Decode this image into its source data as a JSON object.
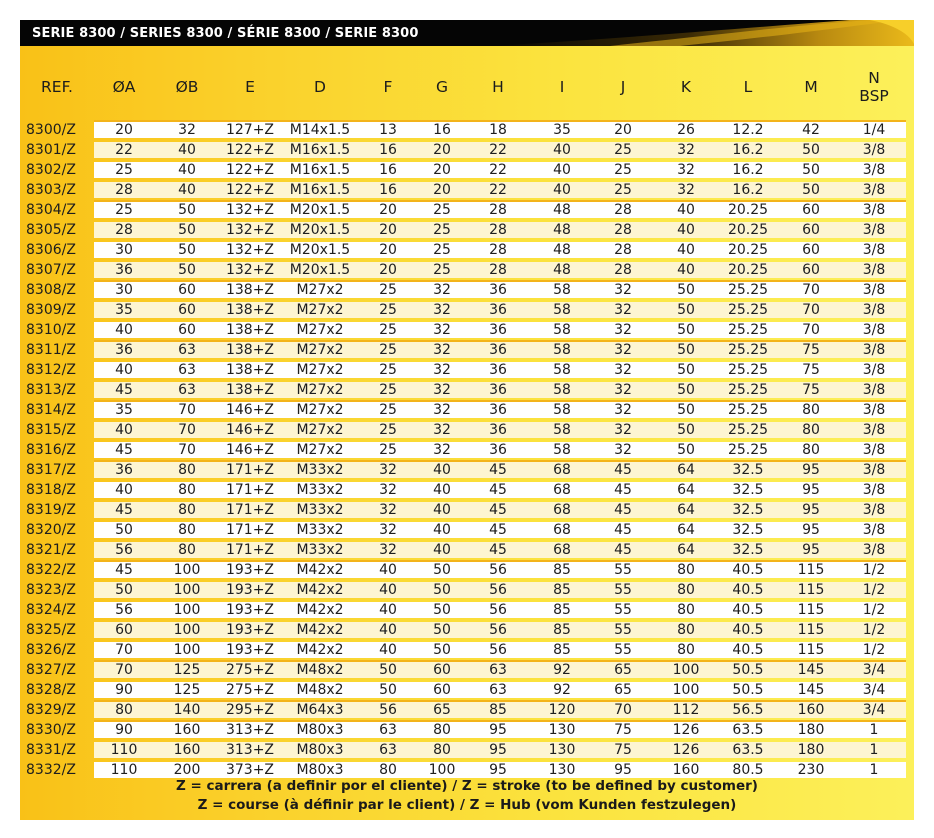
{
  "title": "SERIE 8300 / SERIES 8300 / SÉRIE 8300 / SERIE 8300",
  "colors": {
    "panel_yellow": "#fbd930",
    "banner_black": "#050505",
    "row_separator": "#f3b41a"
  },
  "table": {
    "headers": [
      "REF.",
      "ØA",
      "ØB",
      "E",
      "D",
      "F",
      "G",
      "H",
      "I",
      "J",
      "K",
      "L",
      "M",
      "N\nBSP"
    ],
    "rows": [
      [
        "8300/Z",
        "20",
        "32",
        "127+Z",
        "M14x1.5",
        "13",
        "16",
        "18",
        "35",
        "20",
        "26",
        "12.2",
        "42",
        "1/4"
      ],
      [
        "8301/Z",
        "22",
        "40",
        "122+Z",
        "M16x1.5",
        "16",
        "20",
        "22",
        "40",
        "25",
        "32",
        "16.2",
        "50",
        "3/8"
      ],
      [
        "8302/Z",
        "25",
        "40",
        "122+Z",
        "M16x1.5",
        "16",
        "20",
        "22",
        "40",
        "25",
        "32",
        "16.2",
        "50",
        "3/8"
      ],
      [
        "8303/Z",
        "28",
        "40",
        "122+Z",
        "M16x1.5",
        "16",
        "20",
        "22",
        "40",
        "25",
        "32",
        "16.2",
        "50",
        "3/8"
      ],
      [
        "8304/Z",
        "25",
        "50",
        "132+Z",
        "M20x1.5",
        "20",
        "25",
        "28",
        "48",
        "28",
        "40",
        "20.25",
        "60",
        "3/8"
      ],
      [
        "8305/Z",
        "28",
        "50",
        "132+Z",
        "M20x1.5",
        "20",
        "25",
        "28",
        "48",
        "28",
        "40",
        "20.25",
        "60",
        "3/8"
      ],
      [
        "8306/Z",
        "30",
        "50",
        "132+Z",
        "M20x1.5",
        "20",
        "25",
        "28",
        "48",
        "28",
        "40",
        "20.25",
        "60",
        "3/8"
      ],
      [
        "8307/Z",
        "36",
        "50",
        "132+Z",
        "M20x1.5",
        "20",
        "25",
        "28",
        "48",
        "28",
        "40",
        "20.25",
        "60",
        "3/8"
      ],
      [
        "8308/Z",
        "30",
        "60",
        "138+Z",
        "M27x2",
        "25",
        "32",
        "36",
        "58",
        "32",
        "50",
        "25.25",
        "70",
        "3/8"
      ],
      [
        "8309/Z",
        "35",
        "60",
        "138+Z",
        "M27x2",
        "25",
        "32",
        "36",
        "58",
        "32",
        "50",
        "25.25",
        "70",
        "3/8"
      ],
      [
        "8310/Z",
        "40",
        "60",
        "138+Z",
        "M27x2",
        "25",
        "32",
        "36",
        "58",
        "32",
        "50",
        "25.25",
        "70",
        "3/8"
      ],
      [
        "8311/Z",
        "36",
        "63",
        "138+Z",
        "M27x2",
        "25",
        "32",
        "36",
        "58",
        "32",
        "50",
        "25.25",
        "75",
        "3/8"
      ],
      [
        "8312/Z",
        "40",
        "63",
        "138+Z",
        "M27x2",
        "25",
        "32",
        "36",
        "58",
        "32",
        "50",
        "25.25",
        "75",
        "3/8"
      ],
      [
        "8313/Z",
        "45",
        "63",
        "138+Z",
        "M27x2",
        "25",
        "32",
        "36",
        "58",
        "32",
        "50",
        "25.25",
        "75",
        "3/8"
      ],
      [
        "8314/Z",
        "35",
        "70",
        "146+Z",
        "M27x2",
        "25",
        "32",
        "36",
        "58",
        "32",
        "50",
        "25.25",
        "80",
        "3/8"
      ],
      [
        "8315/Z",
        "40",
        "70",
        "146+Z",
        "M27x2",
        "25",
        "32",
        "36",
        "58",
        "32",
        "50",
        "25.25",
        "80",
        "3/8"
      ],
      [
        "8316/Z",
        "45",
        "70",
        "146+Z",
        "M27x2",
        "25",
        "32",
        "36",
        "58",
        "32",
        "50",
        "25.25",
        "80",
        "3/8"
      ],
      [
        "8317/Z",
        "36",
        "80",
        "171+Z",
        "M33x2",
        "32",
        "40",
        "45",
        "68",
        "45",
        "64",
        "32.5",
        "95",
        "3/8"
      ],
      [
        "8318/Z",
        "40",
        "80",
        "171+Z",
        "M33x2",
        "32",
        "40",
        "45",
        "68",
        "45",
        "64",
        "32.5",
        "95",
        "3/8"
      ],
      [
        "8319/Z",
        "45",
        "80",
        "171+Z",
        "M33x2",
        "32",
        "40",
        "45",
        "68",
        "45",
        "64",
        "32.5",
        "95",
        "3/8"
      ],
      [
        "8320/Z",
        "50",
        "80",
        "171+Z",
        "M33x2",
        "32",
        "40",
        "45",
        "68",
        "45",
        "64",
        "32.5",
        "95",
        "3/8"
      ],
      [
        "8321/Z",
        "56",
        "80",
        "171+Z",
        "M33x2",
        "32",
        "40",
        "45",
        "68",
        "45",
        "64",
        "32.5",
        "95",
        "3/8"
      ],
      [
        "8322/Z",
        "45",
        "100",
        "193+Z",
        "M42x2",
        "40",
        "50",
        "56",
        "85",
        "55",
        "80",
        "40.5",
        "115",
        "1/2"
      ],
      [
        "8323/Z",
        "50",
        "100",
        "193+Z",
        "M42x2",
        "40",
        "50",
        "56",
        "85",
        "55",
        "80",
        "40.5",
        "115",
        "1/2"
      ],
      [
        "8324/Z",
        "56",
        "100",
        "193+Z",
        "M42x2",
        "40",
        "50",
        "56",
        "85",
        "55",
        "80",
        "40.5",
        "115",
        "1/2"
      ],
      [
        "8325/Z",
        "60",
        "100",
        "193+Z",
        "M42x2",
        "40",
        "50",
        "56",
        "85",
        "55",
        "80",
        "40.5",
        "115",
        "1/2"
      ],
      [
        "8326/Z",
        "70",
        "100",
        "193+Z",
        "M42x2",
        "40",
        "50",
        "56",
        "85",
        "55",
        "80",
        "40.5",
        "115",
        "1/2"
      ],
      [
        "8327/Z",
        "70",
        "125",
        "275+Z",
        "M48x2",
        "50",
        "60",
        "63",
        "92",
        "65",
        "100",
        "50.5",
        "145",
        "3/4"
      ],
      [
        "8328/Z",
        "90",
        "125",
        "275+Z",
        "M48x2",
        "50",
        "60",
        "63",
        "92",
        "65",
        "100",
        "50.5",
        "145",
        "3/4"
      ],
      [
        "8329/Z",
        "80",
        "140",
        "295+Z",
        "M64x3",
        "56",
        "65",
        "85",
        "120",
        "70",
        "112",
        "56.5",
        "160",
        "3/4"
      ],
      [
        "8330/Z",
        "90",
        "160",
        "313+Z",
        "M80x3",
        "63",
        "80",
        "95",
        "130",
        "75",
        "126",
        "63.5",
        "180",
        "1"
      ],
      [
        "8331/Z",
        "110",
        "160",
        "313+Z",
        "M80x3",
        "63",
        "80",
        "95",
        "130",
        "75",
        "126",
        "63.5",
        "180",
        "1"
      ],
      [
        "8332/Z",
        "110",
        "200",
        "373+Z",
        "M80x3",
        "80",
        "100",
        "95",
        "130",
        "95",
        "160",
        "80.5",
        "230",
        "1"
      ]
    ]
  },
  "footer": {
    "line1": "Z = carrera (a definir por el cliente) / Z = stroke (to be defined by customer)",
    "line2": "Z = course (à définir par le client) / Z = Hub (vom Kunden festzulegen)"
  }
}
